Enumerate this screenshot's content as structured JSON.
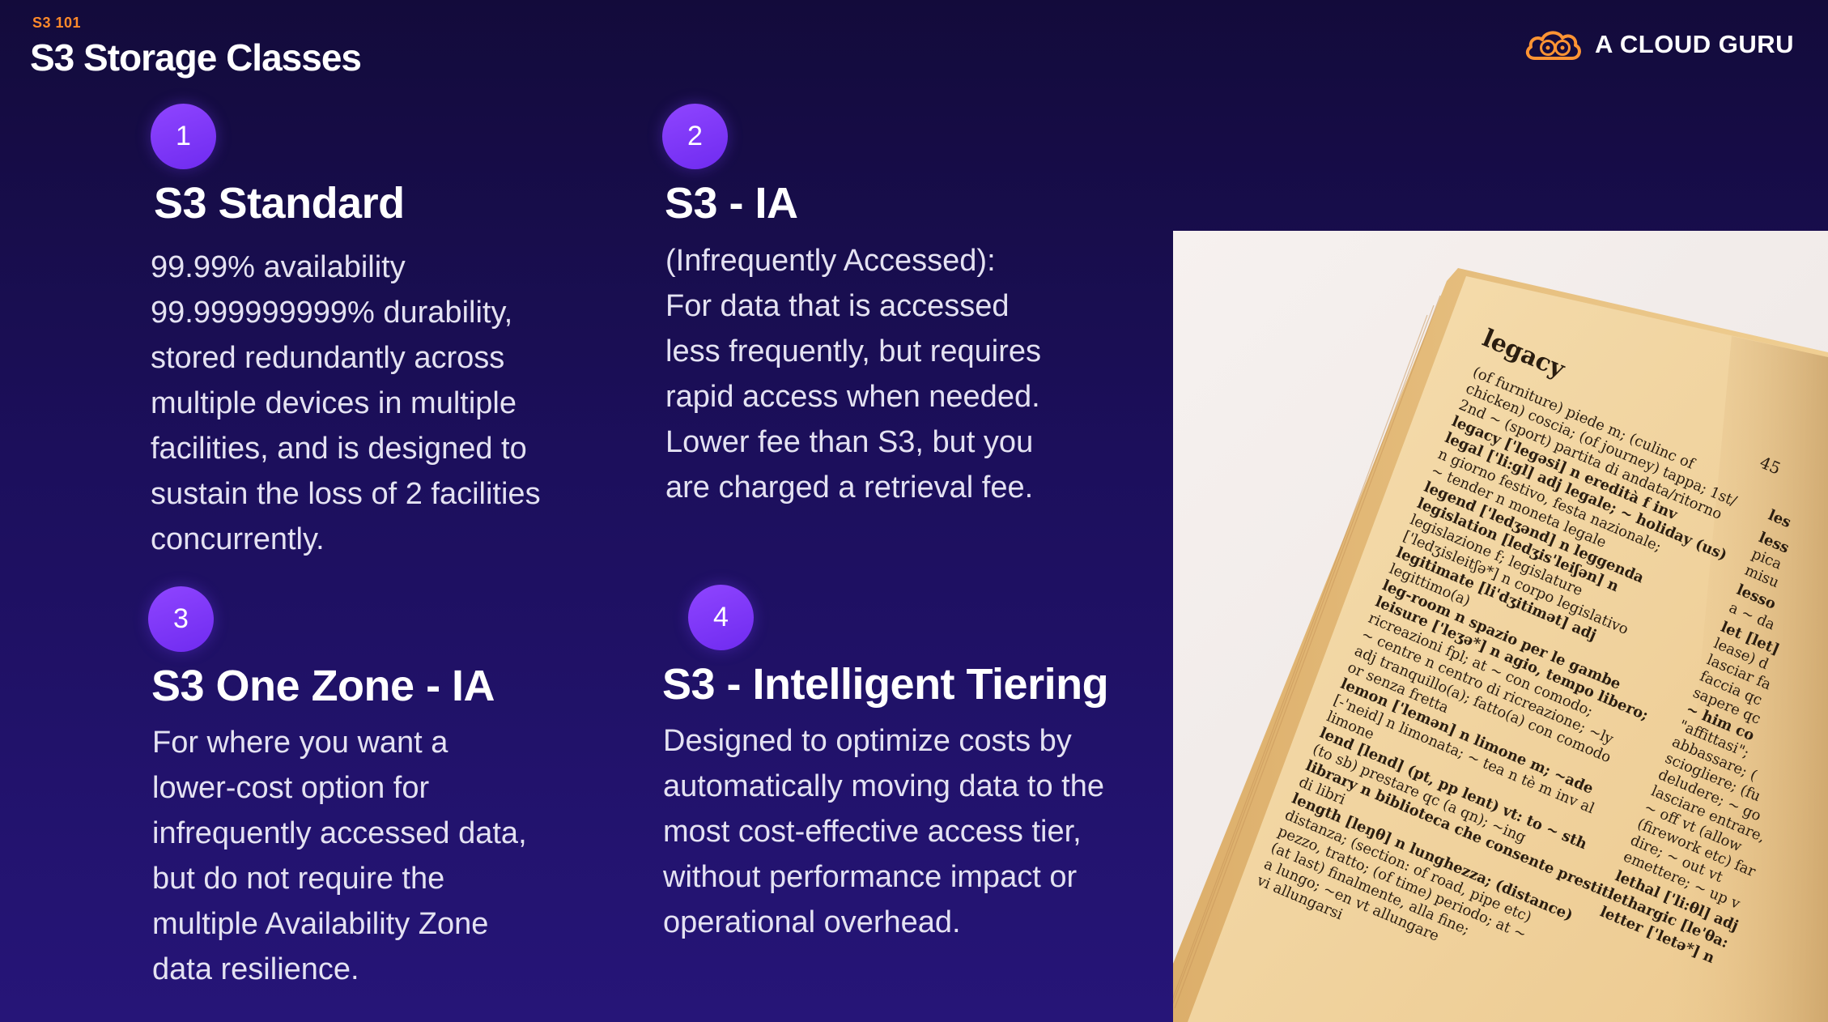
{
  "header": {
    "eyebrow": "S3 101",
    "title": "S3 Storage Classes"
  },
  "brand": {
    "name": "A CLOUD GURU",
    "logo_icon": "cloud-logo-icon",
    "logo_color": "#ff9433"
  },
  "colors": {
    "background_top": "#130b3b",
    "background_bottom": "#261578",
    "badge": "#7a35f5",
    "eyebrow": "#ff8a2a",
    "body_text": "#e4e2f2"
  },
  "cards": [
    {
      "number": "1",
      "title": "S3 Standard",
      "lines": [
        "99.99% availability",
        "99.999999999% durability,",
        "stored redundantly across",
        "multiple devices in multiple",
        "facilities, and is designed to",
        "sustain the loss of 2 facilities",
        "concurrently."
      ]
    },
    {
      "number": "2",
      "title": "S3 - IA",
      "lines": [
        "(Infrequently Accessed):",
        "For data that is accessed",
        "less frequently, but requires",
        "rapid access when needed.",
        "Lower fee than S3, but you",
        "are charged a retrieval fee."
      ]
    },
    {
      "number": "3",
      "title": "S3 One Zone - IA",
      "lines": [
        "For where you want a",
        "lower-cost option for",
        "infrequently accessed data,",
        "but do not require the",
        "multiple Availability Zone",
        "data resilience."
      ]
    },
    {
      "number": "4",
      "title": "S3 - Intelligent Tiering",
      "lines": [
        "Designed to optimize costs by",
        "automatically moving data to the",
        "most cost-effective access tier,",
        "without performance impact or",
        "operational overhead."
      ]
    }
  ],
  "photo": {
    "headword": "legacy",
    "page_number": "45",
    "entries": [
      "(of furniture) piede m; (culinc of",
      "chicken) coscia; (of journey) tappa; 1st/",
      "2nd ~ (sport) partita di andata/ritorno",
      "legacy ['legəsi] n eredità f inv",
      "legal ['li:gl] adj legale; ~ holiday (us)",
      "n giorno festivo, festa nazionale;",
      "~ tender n moneta legale",
      "legend ['ledʒənd] n leggenda",
      "legislation [ledʒis'leiʃən] n",
      "legislazione f; legislature",
      "['ledʒisleitʃə*] n corpo legislativo",
      "legitimate [li'dʒitimət] adj",
      "legittimo(a)",
      "leg-room n spazio per le gambe",
      "leisure ['leʒə*] n agio, tempo libero;",
      "ricreazioni fpl; at ~ con comodo;",
      "~ centre n centro di ricreazione; ~ly",
      "adj tranquillo(a); fatto(a) con comodo",
      "or senza fretta",
      "lemon ['lemən] n limone m; ~ade",
      "[-'neid] n limonata; ~ tea n tè m inv al",
      "limone",
      "lend [lend] (pt, pp lent) vt: to ~ sth",
      "(to sb) prestare qc (a qn); ~ing",
      "library n biblioteca che consente prestiti",
      "di libri",
      "length [leŋθ] n lunghezza; (distance)",
      "distanza; (section: of road, pipe etc)",
      "pezzo, tratto; (of time) periodo; at ~",
      "(at last) finalmente, alla fine;",
      "a lungo; ~en vt allungare",
      "vi allungarsi"
    ],
    "right_column": [
      "les",
      "less",
      "pica",
      "misu",
      "lesso",
      "a ~ da",
      "let [let]",
      "lease) d",
      "lasciar fa",
      "faccia qc",
      "sapere qc",
      "~ him co",
      "\"affittasi\";",
      "abbassare; (",
      "sciogliere; (fu",
      "deludere; ~ go",
      "lasciare entrare,",
      "~ off vt (allow",
      "(firework etc) far",
      "dire; ~ out vt",
      "emettere; ~ up v",
      "lethal ['li:θl] adj",
      "lethargic [le'θa:",
      "letter ['letə*] n"
    ]
  }
}
